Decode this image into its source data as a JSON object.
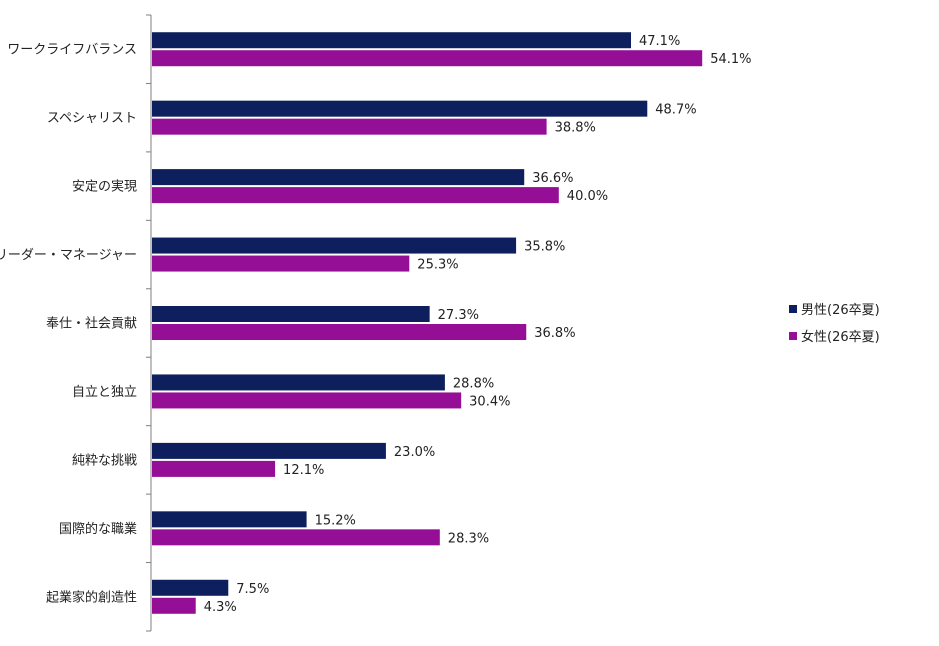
{
  "chart_data": {
    "type": "bar",
    "orientation": "horizontal",
    "title": "",
    "xlabel": "",
    "ylabel": "",
    "xlim": [
      0,
      60
    ],
    "grid": false,
    "legend_position": "right",
    "categories": [
      "ワークライフバランス",
      "スペシャリスト",
      "安定の実現",
      "リーダー・マネージャー",
      "奉仕・社会貢献",
      "自立と独立",
      "純粋な挑戦",
      "国際的な職業",
      "起業家的創造性"
    ],
    "series": [
      {
        "name": "男性(26卒夏)",
        "color": "#0d1f5c",
        "values": [
          47.1,
          48.7,
          36.6,
          35.8,
          27.3,
          28.8,
          23.0,
          15.2,
          7.5
        ]
      },
      {
        "name": "女性(26卒夏)",
        "color": "#950f96",
        "values": [
          54.1,
          38.8,
          40.0,
          25.3,
          36.8,
          30.4,
          12.1,
          28.3,
          4.3
        ]
      }
    ],
    "value_suffix": "%"
  }
}
